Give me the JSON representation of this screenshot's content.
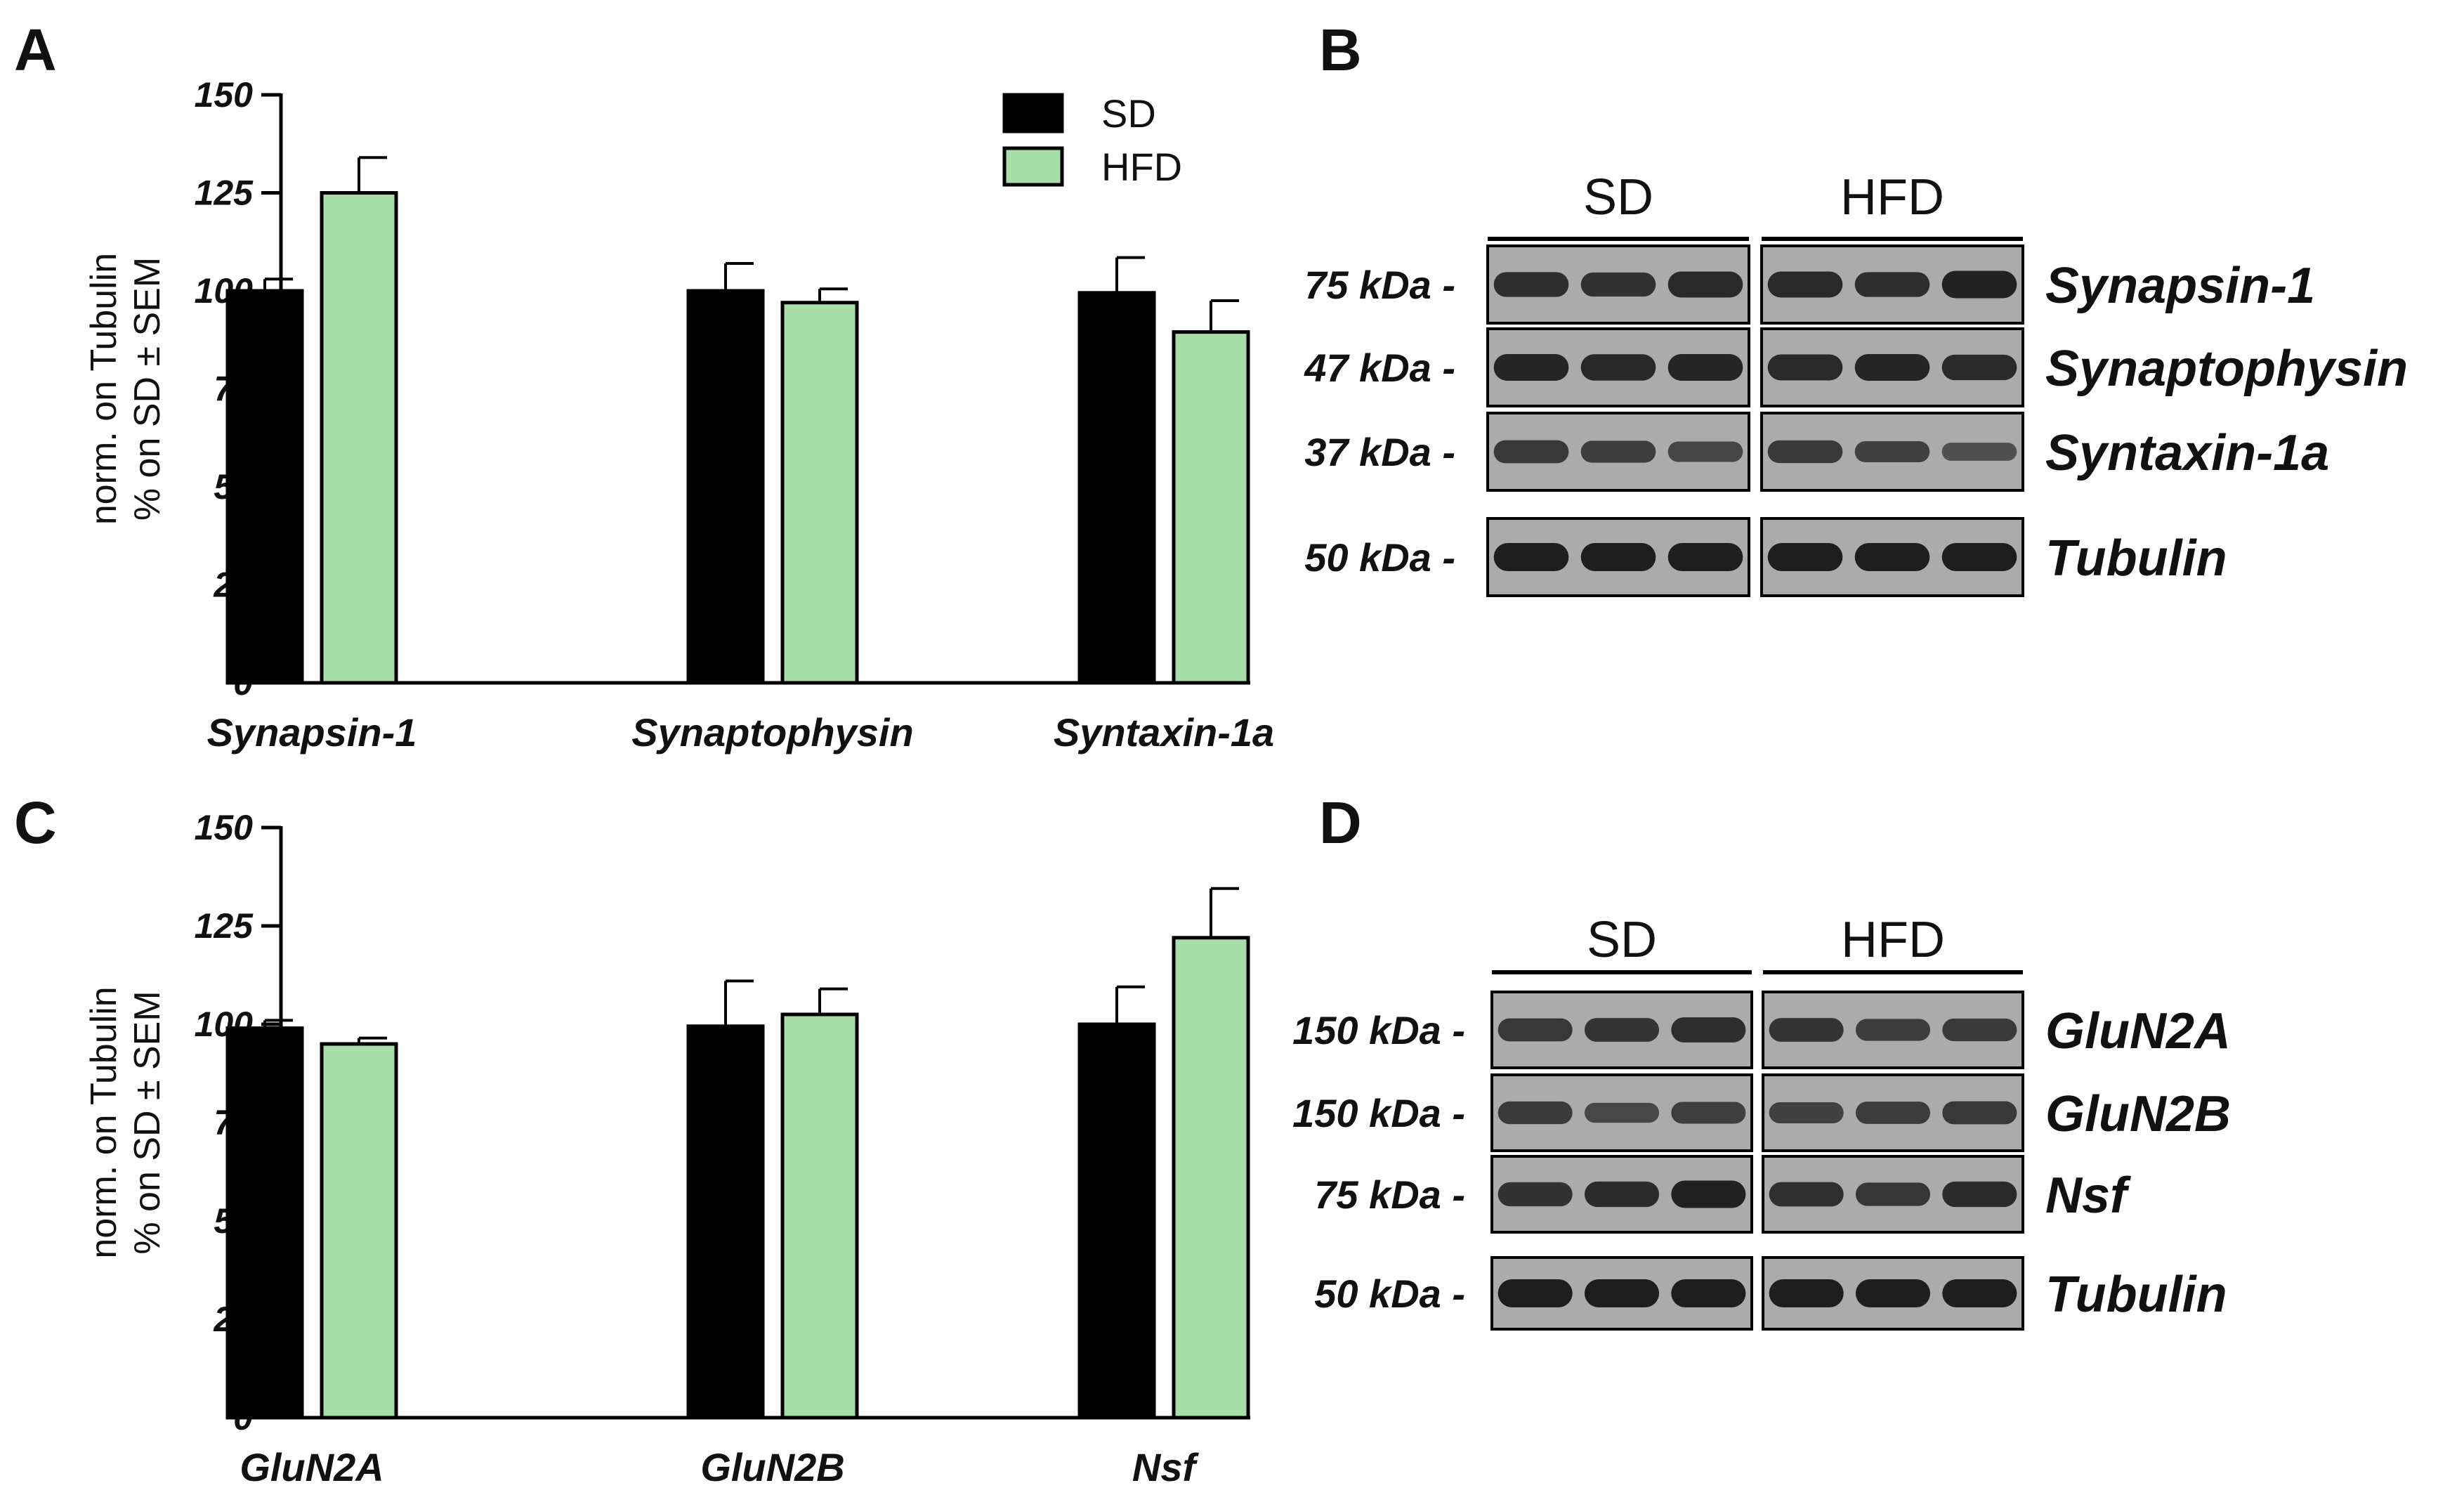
{
  "panels": {
    "A": "A",
    "B": "B",
    "C": "C",
    "D": "D"
  },
  "colors": {
    "SD": "#000000",
    "HFD": "#a8dea8",
    "axis": "#000000",
    "blot_bg": "#ababab",
    "band": "#1e1e1e"
  },
  "legend": [
    "SD",
    "HFD"
  ],
  "chart_data": [
    {
      "panel": "A",
      "type": "bar",
      "ylabel": [
        "norm. on Tubulin",
        "% on SD ± SEM"
      ],
      "yticks": [
        "0",
        "25",
        "50",
        "75",
        "100",
        "125",
        "150"
      ],
      "ylim": [
        0,
        150
      ],
      "categories": [
        "Synapsin-1",
        "Synaptophysin",
        "Syntaxin-1a"
      ],
      "series": [
        {
          "name": "SD",
          "values": [
            100,
            100,
            99.5
          ],
          "errors": [
            3,
            7,
            9
          ]
        },
        {
          "name": "HFD",
          "values": [
            125,
            97,
            89.5
          ],
          "errors": [
            9,
            3.5,
            8
          ]
        }
      ]
    },
    {
      "panel": "C",
      "type": "bar",
      "ylabel": [
        "norm. on Tubulin",
        "% on SD ± SEM"
      ],
      "yticks": [
        "0",
        "25",
        "50",
        "75",
        "100",
        "125",
        "150"
      ],
      "ylim": [
        0,
        150
      ],
      "categories": [
        "GluN2A",
        "GluN2B",
        "Nsf"
      ],
      "series": [
        {
          "name": "SD",
          "values": [
            99,
            99.5,
            100
          ],
          "errors": [
            2,
            11.5,
            9.5
          ]
        },
        {
          "name": "HFD",
          "values": [
            95,
            102.5,
            122
          ],
          "errors": [
            1.5,
            6.5,
            12.5
          ]
        }
      ]
    }
  ],
  "blots": [
    {
      "panel": "B",
      "groups": [
        "SD",
        "HFD"
      ],
      "rows": [
        {
          "kda": "75 kDa -",
          "protein": "Synapsin-1",
          "intensity": [
            [
              0.82,
              0.78,
              0.88
            ],
            [
              0.88,
              0.82,
              0.96
            ]
          ]
        },
        {
          "kda": "47 kDa -",
          "protein": "Synaptophysin",
          "intensity": [
            [
              0.92,
              0.9,
              0.92
            ],
            [
              0.88,
              0.92,
              0.86
            ]
          ]
        },
        {
          "kda": "37 kDa -",
          "protein": "Syntaxin-1a",
          "intensity": [
            [
              0.72,
              0.66,
              0.58
            ],
            [
              0.7,
              0.62,
              0.45
            ]
          ]
        },
        {
          "kda": "50 kDa -",
          "protein": "Tubulin",
          "intensity": [
            [
              1.0,
              1.0,
              1.0
            ],
            [
              1.0,
              1.0,
              1.0
            ]
          ]
        }
      ]
    },
    {
      "panel": "D",
      "groups": [
        "SD",
        "HFD"
      ],
      "rows": [
        {
          "kda": "150 kDa -",
          "protein": "GluN2A",
          "intensity": [
            [
              0.72,
              0.76,
              0.84
            ],
            [
              0.76,
              0.66,
              0.7
            ]
          ]
        },
        {
          "kda": "150 kDa -",
          "protein": "GluN2B",
          "intensity": [
            [
              0.7,
              0.55,
              0.65
            ],
            [
              0.62,
              0.68,
              0.72
            ]
          ]
        },
        {
          "kda": "75 kDa -",
          "protein": "Nsf",
          "intensity": [
            [
              0.78,
              0.86,
              0.96
            ],
            [
              0.8,
              0.74,
              0.86
            ]
          ]
        },
        {
          "kda": "50 kDa -",
          "protein": "Tubulin",
          "intensity": [
            [
              1.0,
              1.0,
              1.0
            ],
            [
              1.0,
              1.0,
              1.0
            ]
          ]
        }
      ]
    }
  ]
}
